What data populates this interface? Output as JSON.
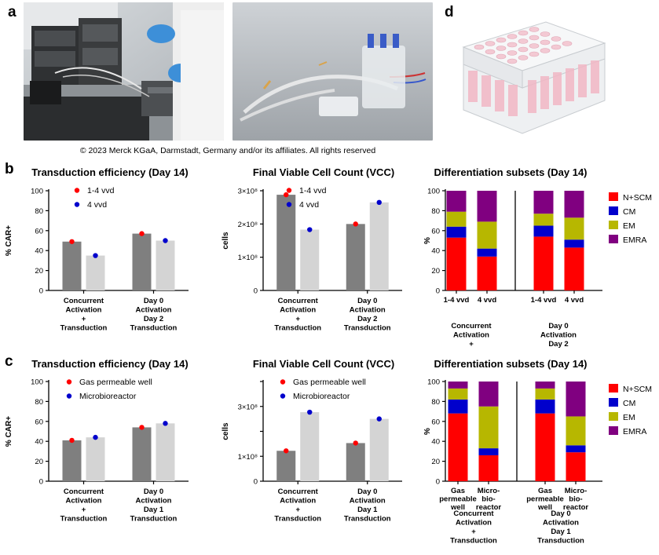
{
  "panels": {
    "a": "a",
    "b": "b",
    "c": "c",
    "d": "d"
  },
  "copyright": "© 2023 Merck KGaA, Darmstadt, Germany and/or its affiliates. All rights reserved",
  "colors": {
    "dark_bar": "#7f7f7f",
    "light_bar": "#d4d4d4",
    "dot_red": "#ff0000",
    "dot_blue": "#0000cc",
    "nscm": "#ff0000",
    "cm": "#0000cc",
    "em": "#b7b700",
    "emra": "#800080"
  },
  "chart_data": [
    {
      "id": "b1",
      "type": "bar",
      "title": "Transduction efficiency (Day 14)",
      "ylabel": "% CAR+",
      "ylim": [
        0,
        100
      ],
      "yticks": [
        "0",
        "20",
        "40",
        "60",
        "80",
        "100"
      ],
      "categories": [
        "Concurrent\nActivation\n+\nTransduction",
        "Day 0\nActivation\nDay 2\nTransduction"
      ],
      "series": [
        {
          "name": "1-4 vvd",
          "values": [
            49,
            57
          ]
        },
        {
          "name": "4 vvd",
          "values": [
            35,
            50
          ]
        }
      ],
      "legend": "top-center"
    },
    {
      "id": "b2",
      "type": "bar",
      "title": "Final Viable Cell Count (VCC)",
      "ylabel": "cells",
      "ylim": [
        0,
        300000000.0
      ],
      "yticks": [
        "0",
        "1×10⁸",
        "2×10⁸",
        "3×10⁸"
      ],
      "categories": [
        "Concurrent\nActivation\n+\nTransduction",
        "Day 0\nActivation\nDay 2\nTransduction"
      ],
      "series": [
        {
          "name": "1-4 vvd",
          "values": [
            288000000.0,
            200000000.0
          ]
        },
        {
          "name": "4 vvd",
          "values": [
            183000000.0,
            265000000.0
          ]
        }
      ],
      "legend": "top-center"
    },
    {
      "id": "b3",
      "type": "bar",
      "stacked": true,
      "title": "Differentiation subsets (Day 14)",
      "ylabel": "%",
      "ylim": [
        0,
        100
      ],
      "yticks": [
        "0",
        "20",
        "40",
        "60",
        "80",
        "100"
      ],
      "categories": [
        "1-4 vvd",
        "4 vvd",
        "1-4 vvd",
        "4 vvd"
      ],
      "groups": [
        "Concurrent\nActivation\n+\nTransduction",
        "Day 0\nActivation\nDay 2\nTransduction"
      ],
      "series": [
        {
          "name": "N+SCM",
          "values": [
            53,
            34,
            54,
            43
          ]
        },
        {
          "name": "CM",
          "values": [
            11,
            8,
            11,
            8
          ]
        },
        {
          "name": "EM",
          "values": [
            15,
            27,
            12,
            22
          ]
        },
        {
          "name": "EMRA",
          "values": [
            21,
            31,
            23,
            27
          ]
        }
      ],
      "legend": "right"
    },
    {
      "id": "c1",
      "type": "bar",
      "title": "Transduction efficiency (Day 14)",
      "ylabel": "% CAR+",
      "ylim": [
        0,
        100
      ],
      "yticks": [
        "0",
        "20",
        "40",
        "60",
        "80",
        "100"
      ],
      "categories": [
        "Concurrent\nActivation\n+\nTransduction",
        "Day 0\nActivation\nDay 1\nTransduction"
      ],
      "series": [
        {
          "name": "Gas permeable well",
          "values": [
            41,
            54
          ]
        },
        {
          "name": "Microbioreactor",
          "values": [
            44,
            58
          ]
        }
      ],
      "legend": "top-center"
    },
    {
      "id": "c2",
      "type": "bar",
      "title": "Final Viable Cell Count (VCC)",
      "ylabel": "cells",
      "ylim": [
        0,
        400000000.0
      ],
      "yticks": [
        "0",
        "1×10⁸",
        "2×10⁸",
        "3×10⁸",
        "4×10⁸"
      ],
      "ytick_values": [
        0,
        100000000.0,
        200000000.0,
        300000000.0,
        400000000.0
      ],
      "ytick_show": [
        true,
        true,
        false,
        true,
        false
      ],
      "categories": [
        "Concurrent\nActivation\n+\nTransduction",
        "Day 0\nActivation\nDay 1\nTransduction"
      ],
      "series": [
        {
          "name": "Gas permeable well",
          "values": [
            122000000.0,
            153000000.0
          ]
        },
        {
          "name": "Microbioreactor",
          "values": [
            277000000.0,
            250000000.0
          ]
        }
      ],
      "legend": "top-center"
    },
    {
      "id": "c3",
      "type": "bar",
      "stacked": true,
      "title": "Differentiation subsets (Day 14)",
      "ylabel": "%",
      "ylim": [
        0,
        100
      ],
      "yticks": [
        "0",
        "20",
        "40",
        "60",
        "80",
        "100"
      ],
      "categories": [
        "Gas\npermeable\nwell",
        "Micro-\nbio-\nreactor",
        "Gas\npermeable\nwell",
        "Micro-\nbio-\nreactor"
      ],
      "groups": [
        "Concurrent\nActivation\n+\nTransduction",
        "Day 0\nActivation\nDay 1\nTransduction"
      ],
      "series": [
        {
          "name": "N+SCM",
          "values": [
            68,
            26,
            68,
            29
          ]
        },
        {
          "name": "CM",
          "values": [
            14,
            7,
            14,
            7
          ]
        },
        {
          "name": "EM",
          "values": [
            11,
            42,
            11,
            29
          ]
        },
        {
          "name": "EMRA",
          "values": [
            7,
            25,
            7,
            35
          ]
        }
      ],
      "legend": "right"
    }
  ]
}
